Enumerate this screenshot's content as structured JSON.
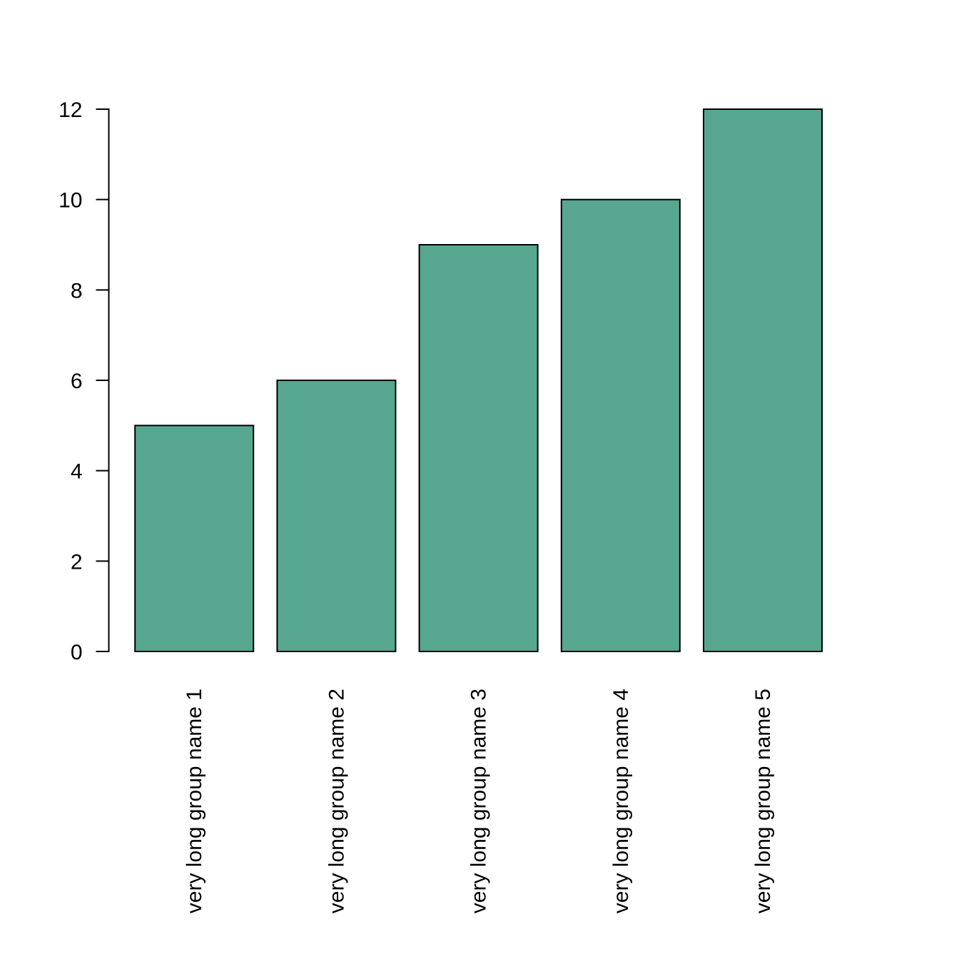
{
  "figure": {
    "background_color": "#ffffff",
    "text_color": "#000000"
  },
  "chart_data": {
    "type": "bar",
    "title": "",
    "xlabel": "",
    "ylabel": "",
    "categories": [
      "very long group name 1",
      "very long group name 2",
      "very long group name 3",
      "very long group name 4",
      "very long group name 5"
    ],
    "values": [
      5,
      6,
      9,
      10,
      12
    ],
    "ylim": [
      0,
      12
    ],
    "yticks": [
      0,
      2,
      4,
      6,
      8,
      10,
      12
    ],
    "bar_color": "#57a690",
    "bar_border_color": "#000000",
    "axis_color": "#000000",
    "grid": false,
    "legend": "none",
    "bar_gap_ratio": 0.2,
    "x_label_rotation_deg": 90
  }
}
